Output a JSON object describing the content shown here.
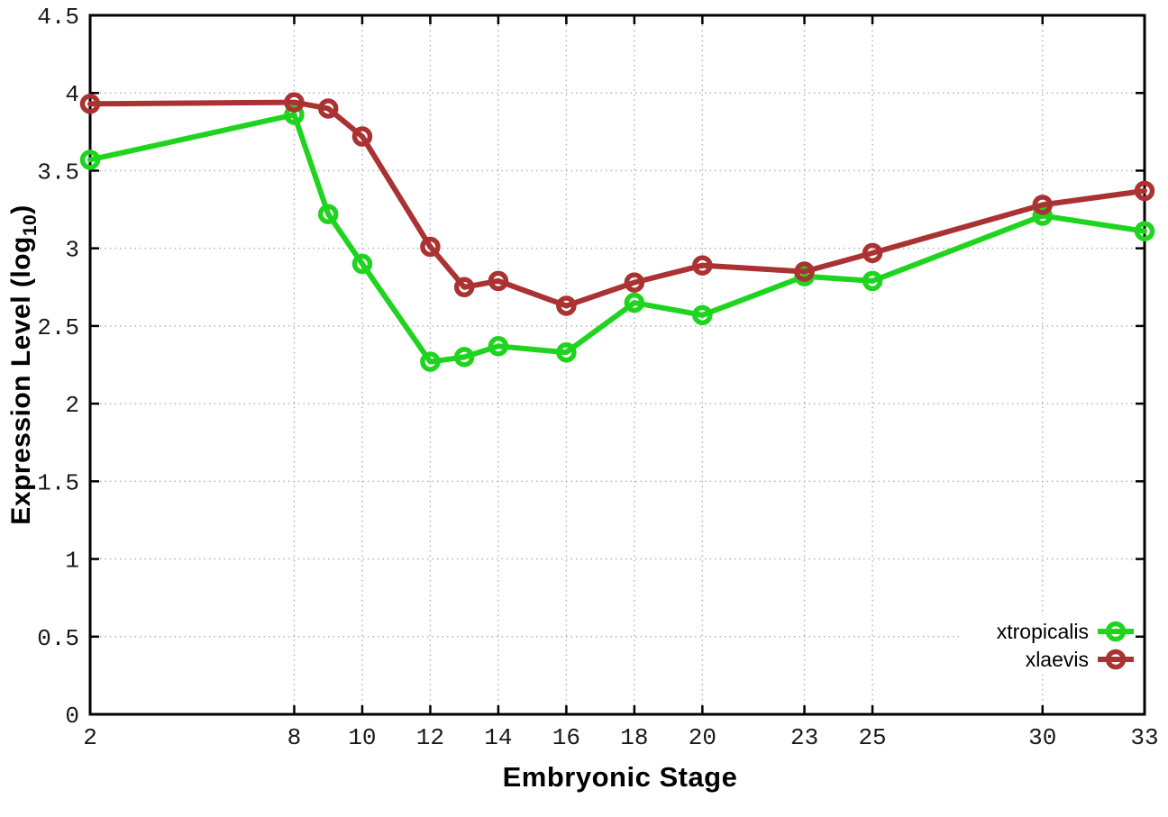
{
  "figure": {
    "background": "#ffffff",
    "border_color": "#000000",
    "grid_color": "#b5b5b5",
    "tick_label_color": "#1a1a1a"
  },
  "axes": {
    "xlabel": "Embryonic Stage",
    "ylabel_main": "Expression Level (log",
    "ylabel_sub": "10",
    "ylabel_end": ")"
  },
  "legend": {
    "items": [
      {
        "label": "xtropicalis",
        "color": "#1fd41f"
      },
      {
        "label": "xlaevis",
        "color": "#ab3232"
      }
    ]
  },
  "chart_data": {
    "type": "line",
    "title": "",
    "xlabel": "Embryonic Stage",
    "ylabel": "Expression Level (log10)",
    "xlim": [
      2,
      33
    ],
    "ylim": [
      0,
      4.5
    ],
    "grid": true,
    "legend_position": "inside bottom-right",
    "marker": "open-circle",
    "x": [
      2,
      8,
      9,
      10,
      12,
      13,
      14,
      16,
      18,
      20,
      23,
      25,
      30,
      33
    ],
    "xticks": [
      {
        "v": 2,
        "label": "2"
      },
      {
        "v": 8,
        "label": "8"
      },
      {
        "v": 10,
        "label": "10"
      },
      {
        "v": 12,
        "label": "12"
      },
      {
        "v": 14,
        "label": "14"
      },
      {
        "v": 16,
        "label": "16"
      },
      {
        "v": 18,
        "label": "18"
      },
      {
        "v": 20,
        "label": "20"
      },
      {
        "v": 23,
        "label": "23"
      },
      {
        "v": 25,
        "label": "25"
      },
      {
        "v": 30,
        "label": "30"
      },
      {
        "v": 33,
        "label": "33"
      }
    ],
    "yticks": [
      {
        "v": 0,
        "label": "0"
      },
      {
        "v": 0.5,
        "label": "0.5"
      },
      {
        "v": 1,
        "label": "1"
      },
      {
        "v": 1.5,
        "label": "1.5"
      },
      {
        "v": 2,
        "label": "2"
      },
      {
        "v": 2.5,
        "label": "2.5"
      },
      {
        "v": 3,
        "label": "3"
      },
      {
        "v": 3.5,
        "label": "3.5"
      },
      {
        "v": 4,
        "label": "4"
      },
      {
        "v": 4.5,
        "label": "4.5"
      }
    ],
    "series": [
      {
        "name": "xtropicalis",
        "color": "#1fd41f",
        "values": [
          3.57,
          3.86,
          3.22,
          2.9,
          2.27,
          2.3,
          2.37,
          2.33,
          2.65,
          2.57,
          2.82,
          2.79,
          3.21,
          3.11
        ]
      },
      {
        "name": "xlaevis",
        "color": "#ab3232",
        "values": [
          3.93,
          3.94,
          3.9,
          3.72,
          3.01,
          2.75,
          2.79,
          2.63,
          2.78,
          2.89,
          2.85,
          2.97,
          3.28,
          3.37
        ]
      }
    ]
  }
}
